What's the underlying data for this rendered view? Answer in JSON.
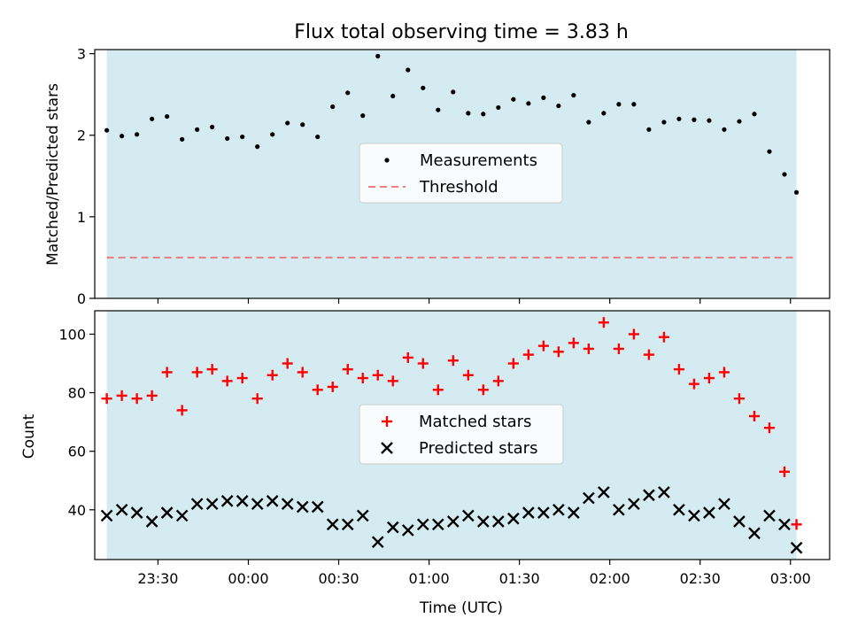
{
  "title": "Flux total observing time = 3.83 h",
  "colors": {
    "background_band": "#d4ebf1",
    "measurement": "#000000",
    "threshold": "#f08080",
    "matched": "#ff0000",
    "predicted": "#000000"
  },
  "top": {
    "ylabel": "Matched/Predicted stars",
    "legend": {
      "measurements": "Measurements",
      "threshold": "Threshold"
    }
  },
  "bottom": {
    "ylabel": "Count",
    "xlabel": "Time (UTC)",
    "legend": {
      "matched": "Matched stars",
      "predicted": "Predicted stars"
    }
  },
  "chart_data": [
    {
      "type": "scatter",
      "panel": "top",
      "ylim": [
        0,
        3.05
      ],
      "yticks": [
        0,
        1,
        2,
        3
      ],
      "xlim": [
        "23:09",
        "03:13"
      ],
      "shaded_span": [
        "23:13",
        "03:02"
      ],
      "grid": false,
      "legend_position": "center",
      "threshold": 0.5,
      "series": [
        {
          "name": "Measurements",
          "x": [
            "23:13",
            "23:18",
            "23:23",
            "23:28",
            "23:33",
            "23:38",
            "23:43",
            "23:48",
            "23:53",
            "23:58",
            "00:03",
            "00:08",
            "00:13",
            "00:18",
            "00:23",
            "00:28",
            "00:33",
            "00:38",
            "00:43",
            "00:48",
            "00:53",
            "00:58",
            "01:03",
            "01:08",
            "01:13",
            "01:18",
            "01:23",
            "01:28",
            "01:33",
            "01:38",
            "01:43",
            "01:48",
            "01:53",
            "01:58",
            "02:03",
            "02:08",
            "02:13",
            "02:18",
            "02:23",
            "02:28",
            "02:33",
            "02:38",
            "02:43",
            "02:48",
            "02:53",
            "02:58",
            "03:02"
          ],
          "values": [
            2.06,
            1.99,
            2.01,
            2.2,
            2.23,
            1.95,
            2.07,
            2.1,
            1.96,
            1.98,
            1.86,
            2.01,
            2.15,
            2.13,
            1.98,
            2.35,
            2.52,
            2.24,
            2.97,
            2.48,
            2.8,
            2.58,
            2.31,
            2.53,
            2.27,
            2.26,
            2.34,
            2.44,
            2.39,
            2.46,
            2.36,
            2.49,
            2.16,
            2.27,
            2.38,
            2.38,
            2.07,
            2.16,
            2.2,
            2.19,
            2.18,
            2.07,
            2.17,
            2.26,
            1.8,
            1.52,
            1.3
          ]
        }
      ]
    },
    {
      "type": "scatter",
      "panel": "bottom",
      "ylim": [
        23,
        108
      ],
      "yticks": [
        40,
        60,
        80,
        100
      ],
      "xticks": [
        "23:30",
        "00:00",
        "00:30",
        "01:00",
        "01:30",
        "02:00",
        "02:30",
        "03:00"
      ],
      "xlim": [
        "23:09",
        "03:13"
      ],
      "shaded_span": [
        "23:13",
        "03:02"
      ],
      "grid": false,
      "legend_position": "center",
      "series": [
        {
          "name": "Matched stars",
          "x": [
            "23:13",
            "23:18",
            "23:23",
            "23:28",
            "23:33",
            "23:38",
            "23:43",
            "23:48",
            "23:53",
            "23:58",
            "00:03",
            "00:08",
            "00:13",
            "00:18",
            "00:23",
            "00:28",
            "00:33",
            "00:38",
            "00:43",
            "00:48",
            "00:53",
            "00:58",
            "01:03",
            "01:08",
            "01:13",
            "01:18",
            "01:23",
            "01:28",
            "01:33",
            "01:38",
            "01:43",
            "01:48",
            "01:53",
            "01:58",
            "02:03",
            "02:08",
            "02:13",
            "02:18",
            "02:23",
            "02:28",
            "02:33",
            "02:38",
            "02:43",
            "02:48",
            "02:53",
            "02:58",
            "03:02"
          ],
          "values": [
            78,
            79,
            78,
            79,
            87,
            74,
            87,
            88,
            84,
            85,
            78,
            86,
            90,
            87,
            81,
            82,
            88,
            85,
            86,
            84,
            92,
            90,
            81,
            91,
            86,
            81,
            84,
            90,
            93,
            96,
            94,
            97,
            95,
            104,
            95,
            100,
            93,
            99,
            88,
            83,
            85,
            87,
            78,
            72,
            68,
            53,
            35
          ]
        },
        {
          "name": "Predicted stars",
          "x": [
            "23:13",
            "23:18",
            "23:23",
            "23:28",
            "23:33",
            "23:38",
            "23:43",
            "23:48",
            "23:53",
            "23:58",
            "00:03",
            "00:08",
            "00:13",
            "00:18",
            "00:23",
            "00:28",
            "00:33",
            "00:38",
            "00:43",
            "00:48",
            "00:53",
            "00:58",
            "01:03",
            "01:08",
            "01:13",
            "01:18",
            "01:23",
            "01:28",
            "01:33",
            "01:38",
            "01:43",
            "01:48",
            "01:53",
            "01:58",
            "02:03",
            "02:08",
            "02:13",
            "02:18",
            "02:23",
            "02:28",
            "02:33",
            "02:38",
            "02:43",
            "02:48",
            "02:53",
            "02:58",
            "03:02"
          ],
          "values": [
            38,
            40,
            39,
            36,
            39,
            38,
            42,
            42,
            43,
            43,
            42,
            43,
            42,
            41,
            41,
            35,
            35,
            38,
            29,
            34,
            33,
            35,
            35,
            36,
            38,
            36,
            36,
            37,
            39,
            39,
            40,
            39,
            44,
            46,
            40,
            42,
            45,
            46,
            40,
            38,
            39,
            42,
            36,
            32,
            38,
            35,
            27
          ]
        }
      ]
    }
  ]
}
